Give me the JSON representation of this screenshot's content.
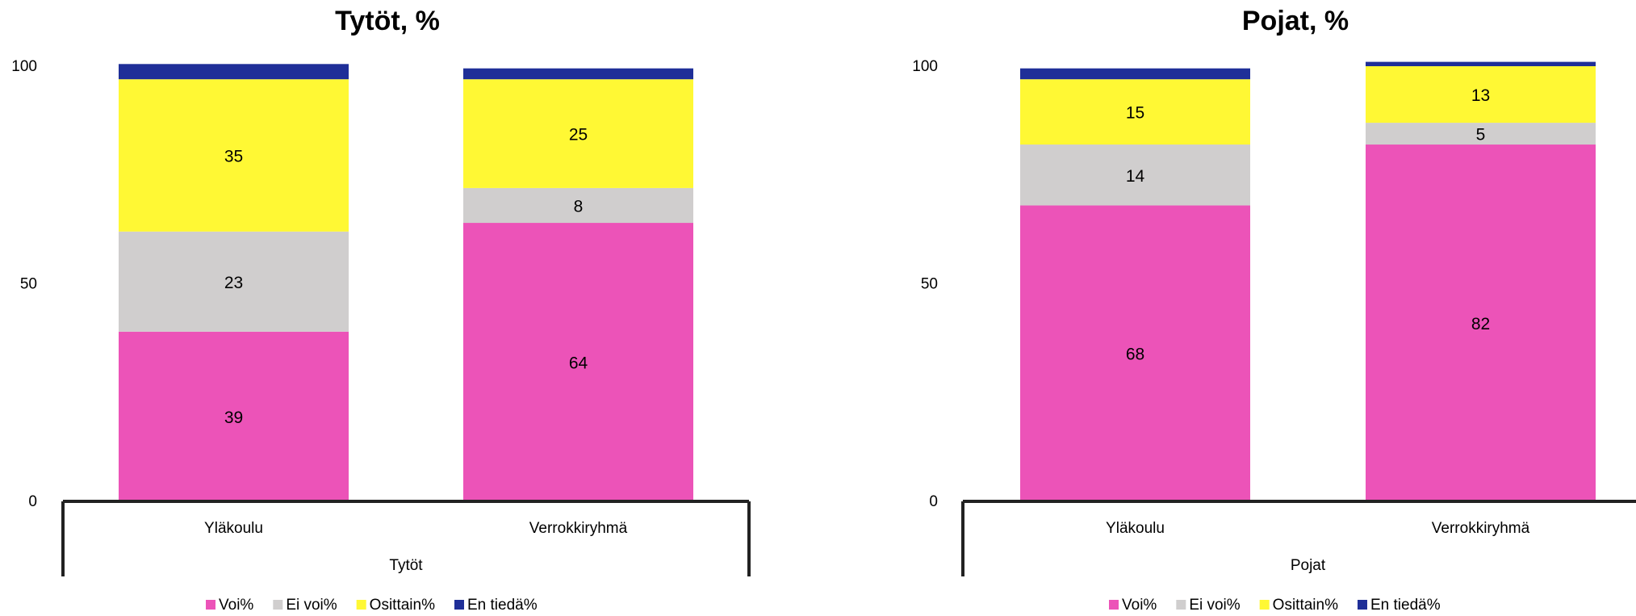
{
  "chart_data": [
    {
      "type": "bar",
      "stacked": true,
      "title": "Tytöt, %",
      "group_label": "Tytöt",
      "categories": [
        "Yläkoulu",
        "Verrokkiryhmä"
      ],
      "ylim": [
        0,
        100
      ],
      "yticks": [
        "0",
        "50",
        "100"
      ],
      "legend_position": "bottom",
      "series": [
        {
          "name": "Voi%",
          "color": "#EC53B8",
          "values": [
            39,
            64
          ],
          "labels": [
            "39",
            "64"
          ]
        },
        {
          "name": "Ei voi%",
          "color": "#D0CECE",
          "values": [
            23,
            8
          ],
          "labels": [
            "23",
            "8"
          ]
        },
        {
          "name": "Osittain%",
          "color": "#FFF834",
          "values": [
            35,
            25
          ],
          "labels": [
            "35",
            "25"
          ]
        },
        {
          "name": "En tiedä%",
          "color": "#1F2F98",
          "values": [
            3.5,
            2.5
          ],
          "labels": [
            "",
            ""
          ]
        }
      ]
    },
    {
      "type": "bar",
      "stacked": true,
      "title": "Pojat, %",
      "group_label": "Pojat",
      "categories": [
        "Yläkoulu",
        "Verrokkiryhmä"
      ],
      "ylim": [
        0,
        100
      ],
      "yticks": [
        "0",
        "50",
        "100"
      ],
      "legend_position": "bottom",
      "series": [
        {
          "name": "Voi%",
          "color": "#EC53B8",
          "values": [
            68,
            82
          ],
          "labels": [
            "68",
            "82"
          ]
        },
        {
          "name": "Ei voi%",
          "color": "#D0CECE",
          "values": [
            14,
            5
          ],
          "labels": [
            "14",
            "5"
          ]
        },
        {
          "name": "Osittain%",
          "color": "#FFF834",
          "values": [
            15,
            13
          ],
          "labels": [
            "15",
            "13"
          ]
        },
        {
          "name": "En tiedä%",
          "color": "#1F2F98",
          "values": [
            2.5,
            1
          ],
          "labels": [
            "",
            ""
          ]
        }
      ]
    }
  ]
}
